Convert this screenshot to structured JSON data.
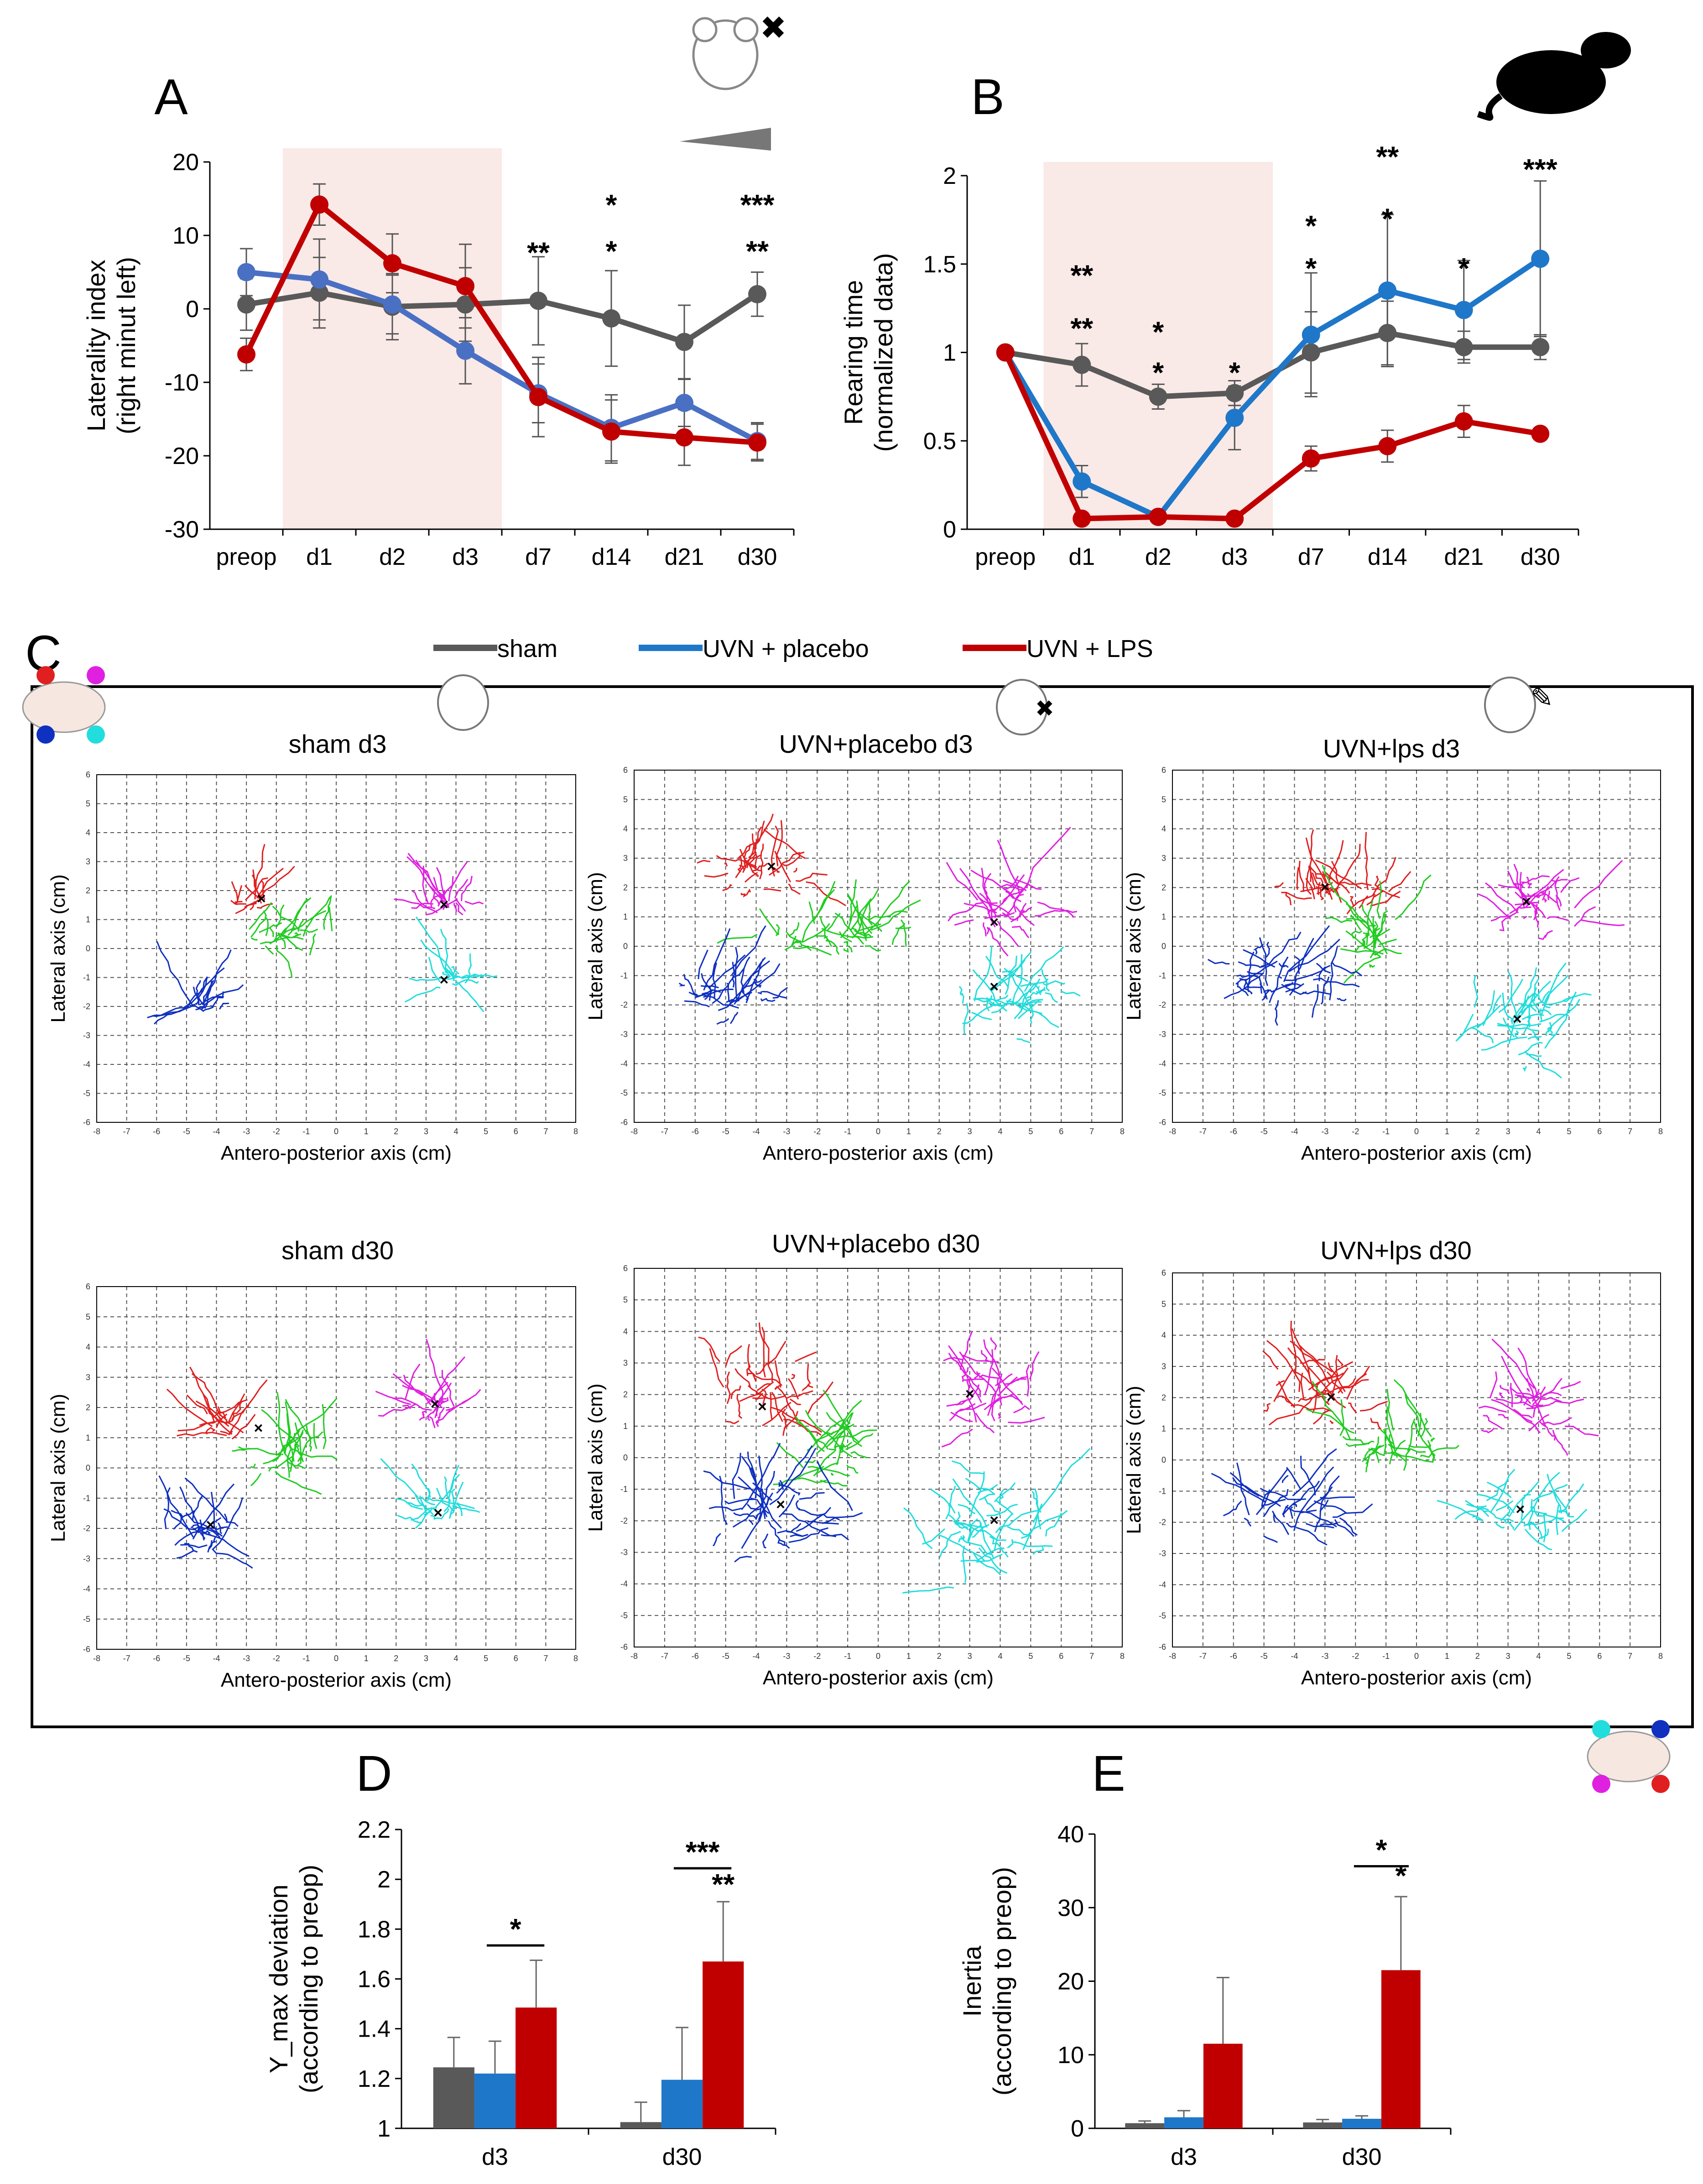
{
  "colors": {
    "sham": "#595959",
    "placebo": "#1f77c9",
    "placebo_line_A": "#4a70c4",
    "lps": "#c00000",
    "shade": "#f9e9e7",
    "purple": "#7030a0"
  },
  "legend": [
    {
      "key": "sham",
      "label": "sham"
    },
    {
      "key": "placebo",
      "label": "UVN + placebo"
    },
    {
      "key": "lps",
      "label": "UVN + LPS"
    }
  ],
  "panels": {
    "A": {
      "letter": "A"
    },
    "B": {
      "letter": "B"
    },
    "C": {
      "letter": "C"
    },
    "D": {
      "letter": "D"
    },
    "E": {
      "letter": "E"
    }
  },
  "chart_data": [
    {
      "id": "A",
      "type": "line",
      "title": "",
      "ylabel_lines": [
        "Laterality index",
        "(right minut left)"
      ],
      "categories": [
        "preop",
        "d1",
        "d2",
        "d3",
        "d7",
        "d14",
        "d21",
        "d30"
      ],
      "yticks": [
        "20",
        "10",
        "0",
        "-10",
        "-20",
        "-30"
      ],
      "ylim": [
        -30,
        20
      ],
      "shaded_categories": [
        "d1",
        "d3"
      ],
      "series": [
        {
          "name": "sham",
          "values": [
            0.6,
            2.2,
            0.3,
            0.6,
            1.1,
            -1.3,
            -4.5,
            2.0
          ],
          "errors": [
            3.5,
            4.8,
            4.5,
            5.0,
            6.0,
            6.5,
            5.0,
            3.0
          ]
        },
        {
          "name": "UVN + placebo",
          "values": [
            5.0,
            4.0,
            0.6,
            -5.7,
            -11.5,
            -16.2,
            -12.8,
            -18.0
          ],
          "errors": [
            3.2,
            5.5,
            4.0,
            4.5,
            4.0,
            4.5,
            3.2,
            2.5
          ]
        },
        {
          "name": "UVN + LPS",
          "values": [
            -6.2,
            14.2,
            6.2,
            3.1,
            -12.0,
            -16.7,
            -17.5,
            -18.2
          ],
          "errors": [
            2.2,
            2.8,
            4.0,
            5.7,
            5.4,
            4.3,
            3.8,
            2.5
          ]
        }
      ],
      "annotations": [
        {
          "category": "d7",
          "text": "**",
          "color_key": "placebo",
          "value": 6.3
        },
        {
          "category": "d14",
          "text": "*",
          "color_key": "placebo",
          "value": 12.8
        },
        {
          "category": "d14",
          "text": "*",
          "color_key": "lps",
          "value": 6.5
        },
        {
          "category": "d30",
          "text": "***",
          "color_key": "placebo",
          "value": 12.8
        },
        {
          "category": "d30",
          "text": "**",
          "color_key": "lps",
          "value": 6.5
        }
      ]
    },
    {
      "id": "B",
      "type": "line",
      "title": "",
      "ylabel_lines": [
        "Rearing time",
        "(normalized data)"
      ],
      "categories": [
        "preop",
        "d1",
        "d2",
        "d3",
        "d7",
        "d14",
        "d21",
        "d30"
      ],
      "yticks": [
        "2",
        "1.5",
        "1",
        "0.5",
        "0"
      ],
      "ylim": [
        0,
        2
      ],
      "shaded_categories": [
        "d1",
        "d3"
      ],
      "series": [
        {
          "name": "sham",
          "values": [
            1.0,
            0.93,
            0.75,
            0.77,
            1.0,
            1.11,
            1.03,
            1.03
          ],
          "errors": [
            0,
            0.12,
            0.07,
            0.07,
            0.23,
            0.18,
            0.09,
            0.07
          ]
        },
        {
          "name": "UVN + placebo",
          "values": [
            1.0,
            0.27,
            0.07,
            0.63,
            1.1,
            1.35,
            1.24,
            1.53
          ],
          "errors": [
            0,
            0.09,
            0.02,
            0.18,
            0.35,
            0.43,
            0.28,
            0.44
          ]
        },
        {
          "name": "UVN + LPS",
          "values": [
            1.0,
            0.06,
            0.07,
            0.06,
            0.4,
            0.47,
            0.61,
            0.54
          ],
          "errors": [
            0,
            0.02,
            0.02,
            0.02,
            0.07,
            0.09,
            0.09,
            0.03
          ]
        }
      ],
      "annotations": [
        {
          "category": "d1",
          "text": "**",
          "color_key": "placebo",
          "value": 1.38
        },
        {
          "category": "d1",
          "text": "**",
          "color_key": "lps",
          "value": 1.08
        },
        {
          "category": "d2",
          "text": "*",
          "color_key": "placebo",
          "value": 1.06
        },
        {
          "category": "d2",
          "text": "*",
          "color_key": "lps",
          "value": 0.83
        },
        {
          "category": "d3",
          "text": "*",
          "color_key": "lps",
          "value": 0.83
        },
        {
          "category": "d7",
          "text": "*",
          "color_key": "purple",
          "value": 1.66
        },
        {
          "category": "d7",
          "text": "*",
          "color_key": "lps",
          "value": 1.42
        },
        {
          "category": "d14",
          "text": "**",
          "color_key": "purple",
          "value": 2.05
        },
        {
          "category": "d14",
          "text": "*",
          "color_key": "lps",
          "value": 1.7
        },
        {
          "category": "d21",
          "text": "*",
          "color_key": "purple",
          "value": 1.42
        },
        {
          "category": "d30",
          "text": "***",
          "color_key": "purple",
          "value": 1.98
        }
      ]
    },
    {
      "id": "C",
      "type": "scatter",
      "xlabel": "Antero-posterior axis (cm)",
      "ylabel": "Lateral axis (cm)",
      "xlim": [
        -8,
        8
      ],
      "ylim": [
        -6,
        6
      ],
      "xticks": [
        "-8",
        "-7",
        "-6",
        "-5",
        "-4",
        "-3",
        "-2",
        "-1",
        "0",
        "1",
        "2",
        "3",
        "4",
        "5",
        "6",
        "7",
        "8"
      ],
      "yticks": [
        "6",
        "5",
        "4",
        "3",
        "2",
        "1",
        "0",
        "-1",
        "-2",
        "-3",
        "-4",
        "-5",
        "-6"
      ],
      "paw_colors": {
        "front-left": "#e02020",
        "center": "#22cc22",
        "hind-left": "#e020e0",
        "front-right": "#1030c0",
        "hind-right": "#22dddd"
      },
      "subplots": [
        {
          "title": "sham d3",
          "clusters": [
            {
              "paw": "front-left",
              "cx": -2.8,
              "cy": 1.6,
              "sx": 0.4,
              "sy": 0.2
            },
            {
              "paw": "center",
              "cx": -1.4,
              "cy": 0.4,
              "sx": 1.0,
              "sy": 0.3
            },
            {
              "paw": "hind-left",
              "cx": 3.6,
              "cy": 1.5,
              "sx": 0.7,
              "sy": 0.2
            },
            {
              "paw": "front-right",
              "cx": -4.6,
              "cy": -2.0,
              "sx": 0.6,
              "sy": 0.1
            },
            {
              "paw": "hind-right",
              "cx": 3.9,
              "cy": -1.1,
              "sx": 0.3,
              "sy": 0.3
            }
          ],
          "means": [
            [
              -2.5,
              1.7
            ],
            [
              3.6,
              1.5
            ],
            [
              3.6,
              -1.1
            ]
          ]
        },
        {
          "title": "UVN+placebo d3",
          "clusters": [
            {
              "paw": "front-left",
              "cx": -4.0,
              "cy": 2.6,
              "sx": 1.2,
              "sy": 0.6
            },
            {
              "paw": "center",
              "cx": -1.2,
              "cy": 0.4,
              "sx": 1.8,
              "sy": 0.5
            },
            {
              "paw": "hind-left",
              "cx": 4.0,
              "cy": 1.2,
              "sx": 1.2,
              "sy": 0.9
            },
            {
              "paw": "front-right",
              "cx": -4.8,
              "cy": -1.6,
              "sx": 1.3,
              "sy": 0.6
            },
            {
              "paw": "hind-right",
              "cx": 4.2,
              "cy": -1.8,
              "sx": 1.4,
              "sy": 0.8
            }
          ],
          "means": [
            [
              -3.5,
              2.7
            ],
            [
              3.8,
              0.8
            ],
            [
              3.8,
              -1.4
            ]
          ]
        },
        {
          "title": "UVN+lps d3",
          "clusters": [
            {
              "paw": "front-left",
              "cx": -2.8,
              "cy": 1.9,
              "sx": 1.4,
              "sy": 0.5
            },
            {
              "paw": "center",
              "cx": -1.3,
              "cy": 0.3,
              "sx": 0.6,
              "sy": 0.8
            },
            {
              "paw": "hind-left",
              "cx": 3.9,
              "cy": 1.4,
              "sx": 1.2,
              "sy": 0.8
            },
            {
              "paw": "front-right",
              "cx": -4.4,
              "cy": -1.2,
              "sx": 1.6,
              "sy": 0.8
            },
            {
              "paw": "hind-right",
              "cx": 3.4,
              "cy": -2.6,
              "sx": 1.6,
              "sy": 1.0
            }
          ],
          "means": [
            [
              -3.0,
              2.0
            ],
            [
              3.6,
              1.5
            ],
            [
              3.3,
              -2.5
            ]
          ]
        },
        {
          "title": "sham d30",
          "clusters": [
            {
              "paw": "front-left",
              "cx": -3.9,
              "cy": 1.6,
              "sx": 0.4,
              "sy": 0.6
            },
            {
              "paw": "center",
              "cx": -1.5,
              "cy": 0.4,
              "sx": 1.0,
              "sy": 0.5
            },
            {
              "paw": "hind-left",
              "cx": 3.4,
              "cy": 2.0,
              "sx": 0.9,
              "sy": 0.4
            },
            {
              "paw": "front-right",
              "cx": -4.5,
              "cy": -2.2,
              "sx": 0.8,
              "sy": 0.6
            },
            {
              "paw": "hind-right",
              "cx": 3.4,
              "cy": -1.3,
              "sx": 0.6,
              "sy": 0.5
            }
          ],
          "means": [
            [
              -2.6,
              1.3
            ],
            [
              3.3,
              2.1
            ],
            [
              3.4,
              -1.5
            ],
            [
              -4.2,
              -1.9
            ]
          ]
        },
        {
          "title": "UVN+placebo d30",
          "clusters": [
            {
              "paw": "front-left",
              "cx": -3.8,
              "cy": 2.0,
              "sx": 1.2,
              "sy": 1.0
            },
            {
              "paw": "center",
              "cx": -1.5,
              "cy": 0.2,
              "sx": 0.8,
              "sy": 0.7
            },
            {
              "paw": "hind-left",
              "cx": 3.5,
              "cy": 2.0,
              "sx": 1.2,
              "sy": 1.0
            },
            {
              "paw": "front-right",
              "cx": -3.5,
              "cy": -2.0,
              "sx": 1.6,
              "sy": 1.0
            },
            {
              "paw": "hind-right",
              "cx": 3.5,
              "cy": -2.4,
              "sx": 1.6,
              "sy": 1.4
            }
          ],
          "means": [
            [
              -3.8,
              1.6
            ],
            [
              3.0,
              2.0
            ],
            [
              -3.2,
              -1.5
            ],
            [
              3.8,
              -2.0
            ]
          ]
        },
        {
          "title": "UVN+lps d30",
          "clusters": [
            {
              "paw": "front-left",
              "cx": -3.2,
              "cy": 2.2,
              "sx": 1.4,
              "sy": 0.8
            },
            {
              "paw": "center",
              "cx": -0.4,
              "cy": 0.4,
              "sx": 1.3,
              "sy": 0.5
            },
            {
              "paw": "hind-left",
              "cx": 3.8,
              "cy": 1.6,
              "sx": 1.2,
              "sy": 0.7
            },
            {
              "paw": "front-right",
              "cx": -4.0,
              "cy": -1.6,
              "sx": 1.4,
              "sy": 0.7
            },
            {
              "paw": "hind-right",
              "cx": 3.6,
              "cy": -1.8,
              "sx": 1.3,
              "sy": 0.6
            }
          ],
          "means": [
            [
              -2.8,
              2.0
            ],
            [
              3.4,
              -1.6
            ]
          ]
        }
      ]
    },
    {
      "id": "D",
      "type": "bar",
      "ylabel_lines": [
        "Y_max deviation",
        "(according to preop)"
      ],
      "categories": [
        "d3",
        "d30"
      ],
      "yticks": [
        "2.2",
        "2",
        "1.8",
        "1.6",
        "1.4",
        "1.2",
        "1"
      ],
      "ylim": [
        1,
        2.2
      ],
      "series": [
        {
          "name": "sham",
          "values": [
            1.245,
            1.025
          ],
          "errors": [
            0.12,
            0.08
          ]
        },
        {
          "name": "UVN + placebo",
          "values": [
            1.22,
            1.195
          ],
          "errors": [
            0.13,
            0.21
          ]
        },
        {
          "name": "UVN + LPS",
          "values": [
            1.485,
            1.67
          ],
          "errors": [
            0.19,
            0.24
          ]
        }
      ],
      "annotations": [
        {
          "category": "d3",
          "text": "*",
          "color_key": "purple",
          "bar": true,
          "value": 1.76
        },
        {
          "category": "d30",
          "text": "***",
          "color_key": "purple",
          "bar": true,
          "value": 2.07
        },
        {
          "category": "d30",
          "text": "**",
          "color_key": "lps",
          "bar": false,
          "value": 1.94
        }
      ]
    },
    {
      "id": "E",
      "type": "bar",
      "ylabel_lines": [
        "Inertia",
        "(according to preop)"
      ],
      "categories": [
        "d3",
        "d30"
      ],
      "yticks": [
        "40",
        "30",
        "20",
        "10",
        "0"
      ],
      "ylim": [
        0,
        40
      ],
      "series": [
        {
          "name": "sham",
          "values": [
            0.7,
            0.8
          ],
          "errors": [
            0.3,
            0.4
          ]
        },
        {
          "name": "UVN + placebo",
          "values": [
            1.5,
            1.3
          ],
          "errors": [
            0.9,
            0.4
          ]
        },
        {
          "name": "UVN + LPS",
          "values": [
            11.5,
            21.5
          ],
          "errors": [
            9.0,
            10.0
          ]
        }
      ],
      "annotations": [
        {
          "category": "d30",
          "text": "*",
          "color_key": "purple",
          "bar": true,
          "value": 36.5
        },
        {
          "category": "d30",
          "text": "*",
          "color_key": "lps",
          "bar": false,
          "value": 33.0
        }
      ]
    }
  ]
}
